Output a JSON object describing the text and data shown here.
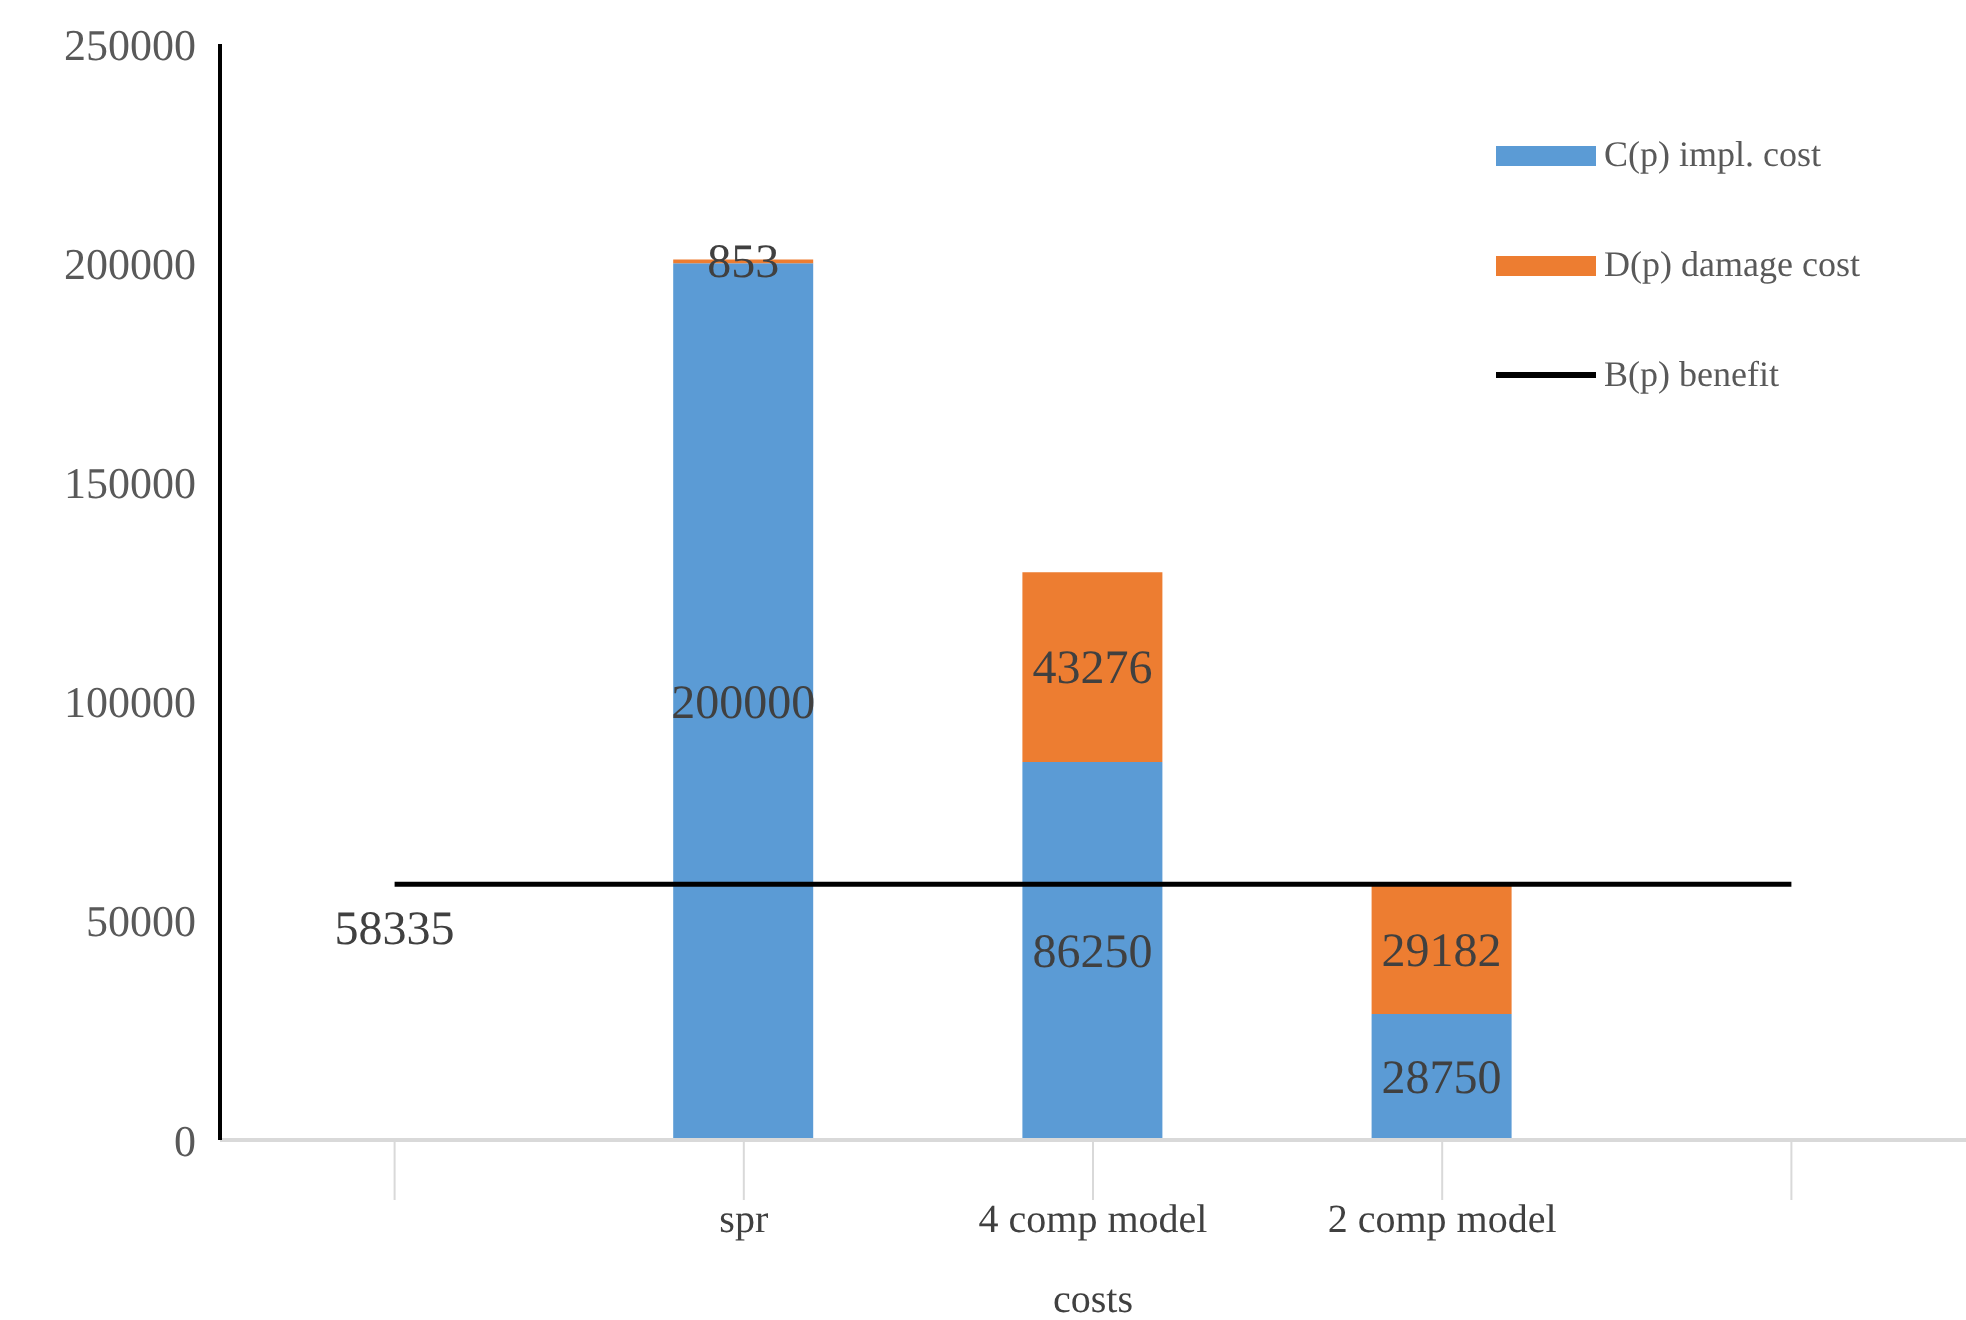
{
  "chart_data": {
    "type": "bar",
    "stacked": true,
    "xlabel": "costs",
    "categories": [
      null,
      "spr",
      "4 comp model",
      "2 comp model",
      null
    ],
    "series": [
      {
        "name": "C(p) impl. cost",
        "color": "#5b9bd5",
        "values": [
          null,
          200000,
          86250,
          28750,
          null
        ],
        "value_labels": [
          null,
          "200000",
          "86250",
          "28750",
          null
        ]
      },
      {
        "name": "D(p) damage cost",
        "color": "#ed7d31",
        "values": [
          null,
          853,
          43276,
          29182,
          null
        ],
        "value_labels": [
          null,
          "853",
          "43276",
          "29182",
          null
        ]
      },
      {
        "name": "B(p) benefit",
        "type": "line",
        "color": "#000000",
        "values": [
          58335,
          58335,
          58335,
          58335,
          58335
        ],
        "value_labels": [
          "58335",
          null,
          null,
          null,
          null
        ]
      }
    ],
    "ylim": [
      0,
      250000
    ],
    "yticks": [
      0,
      50000,
      100000,
      150000,
      200000,
      250000
    ],
    "grid": false,
    "legend": "top right",
    "marker": "none"
  }
}
